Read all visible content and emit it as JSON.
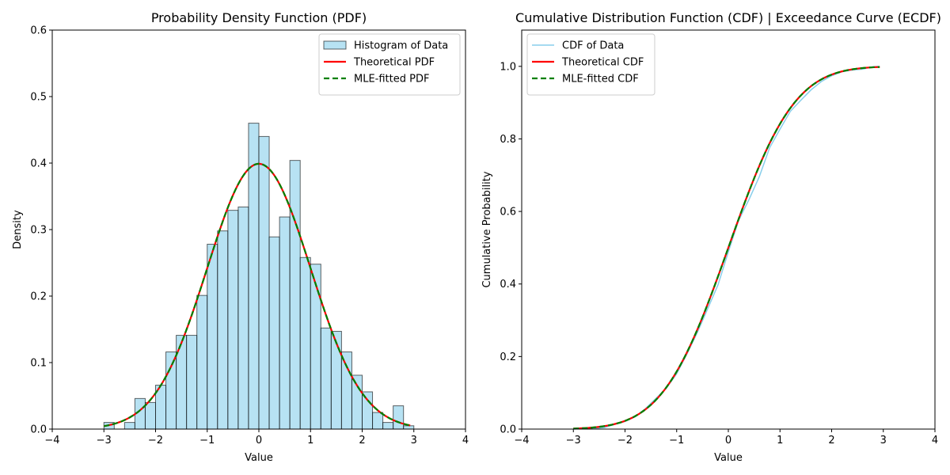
{
  "chart_data": [
    {
      "type": "bar",
      "title": "Probability Density Function (PDF)",
      "xlabel": "Value",
      "ylabel": "Density",
      "xlim": [
        -4,
        4
      ],
      "ylim": [
        0,
        0.6
      ],
      "x_ticks": [
        "−4",
        "−3",
        "−2",
        "−1",
        "0",
        "1",
        "2",
        "3",
        "4"
      ],
      "y_ticks": [
        "0.0",
        "0.1",
        "0.2",
        "0.3",
        "0.4",
        "0.5",
        "0.6"
      ],
      "grid": false,
      "legend_position": "top-right",
      "histogram": {
        "name": "Histogram of Data",
        "bin_start": -3.0,
        "bin_width": 0.2,
        "values": [
          0.01,
          0.0,
          0.01,
          0.046,
          0.04,
          0.066,
          0.116,
          0.141,
          0.141,
          0.201,
          0.278,
          0.298,
          0.329,
          0.334,
          0.46,
          0.44,
          0.289,
          0.319,
          0.404,
          0.258,
          0.248,
          0.152,
          0.147,
          0.116,
          0.081,
          0.056,
          0.025,
          0.01,
          0.035,
          0.005
        ],
        "color": "#87ceeb"
      },
      "series": [
        {
          "name": "Theoretical PDF",
          "color": "#ff0000",
          "style": "solid",
          "function": "normal_pdf",
          "mean": 0,
          "std": 1,
          "x_range": [
            -3.0,
            2.93
          ]
        },
        {
          "name": "MLE-fitted PDF",
          "color": "#008000",
          "style": "dashed",
          "function": "normal_pdf",
          "mean": 0,
          "std": 1,
          "x_range": [
            -3.0,
            2.93
          ]
        }
      ]
    },
    {
      "type": "line",
      "title": "Cumulative Distribution Function (CDF) | Exceedance Curve (ECDF)",
      "xlabel": "Value",
      "ylabel": "Cumulative Probability",
      "xlim": [
        -4,
        4
      ],
      "ylim": [
        0,
        1.1
      ],
      "x_ticks": [
        "−4",
        "−3",
        "−2",
        "−1",
        "0",
        "1",
        "2",
        "3",
        "4"
      ],
      "y_ticks": [
        "0.0",
        "0.2",
        "0.4",
        "0.6",
        "0.8",
        "1.0"
      ],
      "grid": false,
      "legend_position": "top-left",
      "series": [
        {
          "name": "CDF of Data",
          "color": "#87ceeb",
          "style": "solid",
          "function": "empirical_cdf"
        },
        {
          "name": "Theoretical CDF",
          "color": "#ff0000",
          "style": "solid",
          "function": "normal_cdf",
          "mean": 0,
          "std": 1,
          "x_range": [
            -3.0,
            2.93
          ]
        },
        {
          "name": "MLE-fitted CDF",
          "color": "#008000",
          "style": "dashed",
          "function": "normal_cdf",
          "mean": 0,
          "std": 1,
          "x_range": [
            -3.0,
            2.93
          ]
        }
      ]
    }
  ]
}
